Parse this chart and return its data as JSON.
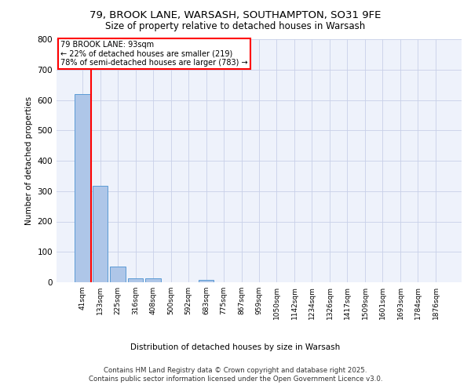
{
  "title1": "79, BROOK LANE, WARSASH, SOUTHAMPTON, SO31 9FE",
  "title2": "Size of property relative to detached houses in Warsash",
  "xlabel": "Distribution of detached houses by size in Warsash",
  "ylabel": "Number of detached properties",
  "categories": [
    "41sqm",
    "133sqm",
    "225sqm",
    "316sqm",
    "408sqm",
    "500sqm",
    "592sqm",
    "683sqm",
    "775sqm",
    "867sqm",
    "959sqm",
    "1050sqm",
    "1142sqm",
    "1234sqm",
    "1326sqm",
    "1417sqm",
    "1509sqm",
    "1601sqm",
    "1693sqm",
    "1784sqm",
    "1876sqm"
  ],
  "values": [
    619,
    317,
    52,
    13,
    12,
    0,
    0,
    8,
    0,
    0,
    0,
    0,
    0,
    0,
    0,
    0,
    0,
    0,
    0,
    0,
    0
  ],
  "bar_color": "#aec6e8",
  "bar_edge_color": "#5b9bd5",
  "vline_color": "red",
  "annotation_text": "79 BROOK LANE: 93sqm\n← 22% of detached houses are smaller (219)\n78% of semi-detached houses are larger (783) →",
  "ylim": [
    0,
    800
  ],
  "yticks": [
    0,
    100,
    200,
    300,
    400,
    500,
    600,
    700,
    800
  ],
  "background_color": "#eef2fb",
  "grid_color": "#c8d0e8",
  "footnote": "Contains HM Land Registry data © Crown copyright and database right 2025.\nContains public sector information licensed under the Open Government Licence v3.0.",
  "title_fontsize": 9.5,
  "subtitle_fontsize": 8.5,
  "footnote_fontsize": 6.2
}
